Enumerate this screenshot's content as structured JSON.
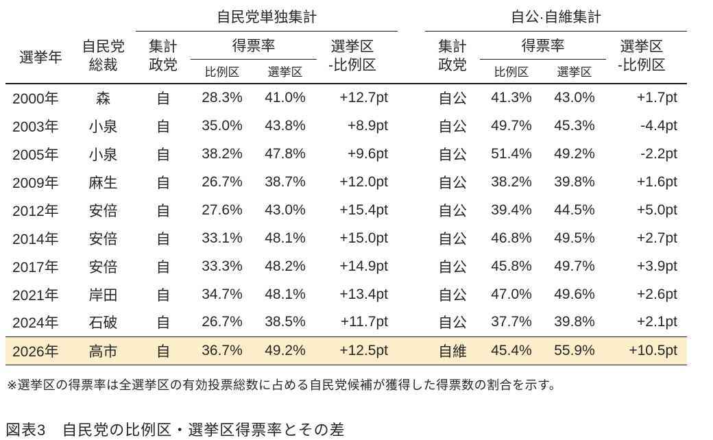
{
  "colors": {
    "highlight": "#FCEDCB",
    "text": "#262626",
    "line": "#1a1a1a"
  },
  "chart_data": {
    "type": "table",
    "title": "図表3　自民党の比例区・選挙区得票率とその差",
    "footnote": "※選挙区の得票率は全選挙区の有効投票総数に占める自民党候補が獲得した得票数の割合を示す。",
    "group_headers": [
      "自民党単独集計",
      "自公·自維集計"
    ],
    "columns": {
      "year": "選挙年",
      "president_l1": "自民党",
      "president_l2": "総裁",
      "parties_l1": "集計",
      "parties_l2": "政党",
      "vote_share": "得票率",
      "pr": "比例区",
      "district": "選挙区",
      "diff_l1": "選挙区",
      "diff_l2": "-比例区"
    },
    "rows": [
      {
        "year": "2000年",
        "president": "森",
        "ldp_parties": "自",
        "ldp_pr": "28.3%",
        "ldp_district": "41.0%",
        "ldp_diff": "+12.7pt",
        "coal_parties": "自公",
        "coal_pr": "41.3%",
        "coal_district": "43.0%",
        "coal_diff": "+1.7pt",
        "highlighted": false
      },
      {
        "year": "2003年",
        "president": "小泉",
        "ldp_parties": "自",
        "ldp_pr": "35.0%",
        "ldp_district": "43.8%",
        "ldp_diff": "+8.9pt",
        "coal_parties": "自公",
        "coal_pr": "49.7%",
        "coal_district": "45.3%",
        "coal_diff": "-4.4pt",
        "highlighted": false
      },
      {
        "year": "2005年",
        "president": "小泉",
        "ldp_parties": "自",
        "ldp_pr": "38.2%",
        "ldp_district": "47.8%",
        "ldp_diff": "+9.6pt",
        "coal_parties": "自公",
        "coal_pr": "51.4%",
        "coal_district": "49.2%",
        "coal_diff": "-2.2pt",
        "highlighted": false
      },
      {
        "year": "2009年",
        "president": "麻生",
        "ldp_parties": "自",
        "ldp_pr": "26.7%",
        "ldp_district": "38.7%",
        "ldp_diff": "+12.0pt",
        "coal_parties": "自公",
        "coal_pr": "38.2%",
        "coal_district": "39.8%",
        "coal_diff": "+1.6pt",
        "highlighted": false
      },
      {
        "year": "2012年",
        "president": "安倍",
        "ldp_parties": "自",
        "ldp_pr": "27.6%",
        "ldp_district": "43.0%",
        "ldp_diff": "+15.4pt",
        "coal_parties": "自公",
        "coal_pr": "39.4%",
        "coal_district": "44.5%",
        "coal_diff": "+5.0pt",
        "highlighted": false
      },
      {
        "year": "2014年",
        "president": "安倍",
        "ldp_parties": "自",
        "ldp_pr": "33.1%",
        "ldp_district": "48.1%",
        "ldp_diff": "+15.0pt",
        "coal_parties": "自公",
        "coal_pr": "46.8%",
        "coal_district": "49.5%",
        "coal_diff": "+2.7pt",
        "highlighted": false
      },
      {
        "year": "2017年",
        "president": "安倍",
        "ldp_parties": "自",
        "ldp_pr": "33.3%",
        "ldp_district": "48.2%",
        "ldp_diff": "+14.9pt",
        "coal_parties": "自公",
        "coal_pr": "45.8%",
        "coal_district": "49.7%",
        "coal_diff": "+3.9pt",
        "highlighted": false
      },
      {
        "year": "2021年",
        "president": "岸田",
        "ldp_parties": "自",
        "ldp_pr": "34.7%",
        "ldp_district": "48.1%",
        "ldp_diff": "+13.4pt",
        "coal_parties": "自公",
        "coal_pr": "47.0%",
        "coal_district": "49.6%",
        "coal_diff": "+2.6pt",
        "highlighted": false
      },
      {
        "year": "2024年",
        "president": "石破",
        "ldp_parties": "自",
        "ldp_pr": "26.7%",
        "ldp_district": "38.5%",
        "ldp_diff": "+11.7pt",
        "coal_parties": "自公",
        "coal_pr": "37.7%",
        "coal_district": "39.8%",
        "coal_diff": "+2.1pt",
        "highlighted": false
      },
      {
        "year": "2026年",
        "president": "高市",
        "ldp_parties": "自",
        "ldp_pr": "36.7%",
        "ldp_district": "49.2%",
        "ldp_diff": "+12.5pt",
        "coal_parties": "自維",
        "coal_pr": "45.4%",
        "coal_district": "55.9%",
        "coal_diff": "+10.5pt",
        "highlighted": true
      }
    ]
  }
}
